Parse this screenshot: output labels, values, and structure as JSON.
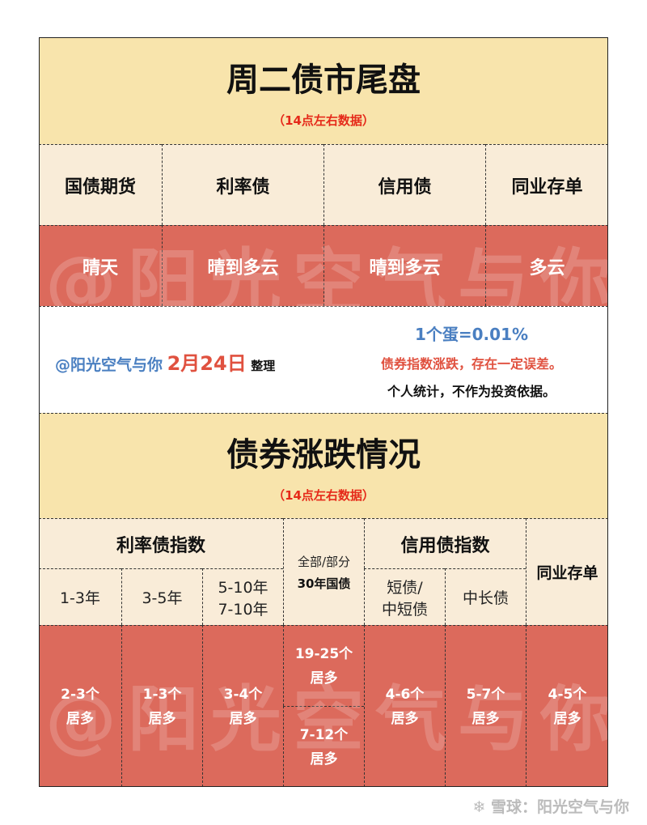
{
  "section1": {
    "title": "周二债市尾盘",
    "subtitle": "（14点左右数据）",
    "headers": [
      "国债期货",
      "利率债",
      "信用债",
      "同业存单"
    ],
    "weather": [
      "晴天",
      "晴到多云",
      "晴到多云",
      "多云"
    ]
  },
  "info": {
    "author": "@阳光空气与你",
    "date": "2月24日",
    "action": "整理",
    "egg": "1个蛋=0.01%",
    "note1": "债券指数涨跌，存在一定误差。",
    "note2": "个人统计，不作为投资依据。"
  },
  "section2": {
    "title": "债券涨跌情况",
    "subtitle": "（14点左右数据）",
    "group_rate": "利率债指数",
    "group_credit": "信用债指数",
    "treasury30_l1": "全部/部分",
    "treasury30_l2": "30年国债",
    "ncd": "同业存单",
    "rate_cols": [
      "1-3年",
      "3-5年"
    ],
    "rate_col3_l1": "5-10年",
    "rate_col3_l2": "7-10年",
    "credit_col1_l1": "短债/",
    "credit_col1_l2": "中短债",
    "credit_col2": "中长债",
    "values": [
      {
        "l1": "2-3个",
        "l2": "居多"
      },
      {
        "l1": "1-3个",
        "l2": "居多"
      },
      {
        "l1": "3-4个",
        "l2": "居多"
      },
      {
        "l1": "19-25个",
        "l2": "居多"
      },
      {
        "l1": "7-12个",
        "l2": "居多"
      },
      {
        "l1": "4-6个",
        "l2": "居多"
      },
      {
        "l1": "5-7个",
        "l2": "居多"
      },
      {
        "l1": "4-5个",
        "l2": "居多"
      }
    ]
  },
  "watermark": "@阳光空气与你",
  "footer": "雪球：阳光空气与你"
}
